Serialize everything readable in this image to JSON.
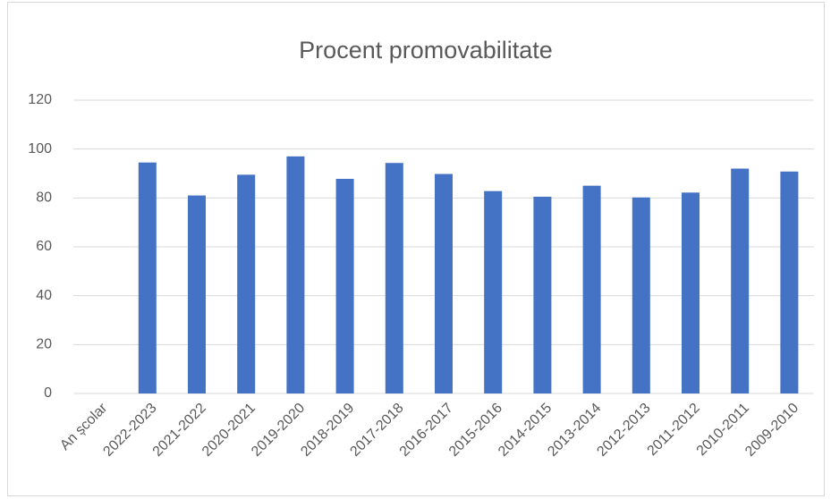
{
  "chart_data": {
    "type": "bar",
    "title": "Procent promovabilitate",
    "categories": [
      "An școlar",
      "2022-2023",
      "2021-2022",
      "2020-2021",
      "2019-2020",
      "2018-2019",
      "2017-2018",
      "2016-2017",
      "2015-2016",
      "2014-2015",
      "2013-2014",
      "2012-2013",
      "2011-2012",
      "2010-2011",
      "2009-2010"
    ],
    "values": [
      null,
      94.5,
      81,
      89.5,
      97,
      87.8,
      94.3,
      89.8,
      82.8,
      80.5,
      85,
      80.2,
      82.2,
      92,
      90.8
    ],
    "color": "#4472c4",
    "ylim": [
      0,
      120
    ],
    "yticks": [
      0,
      20,
      40,
      60,
      80,
      100,
      120
    ],
    "grid": true
  }
}
